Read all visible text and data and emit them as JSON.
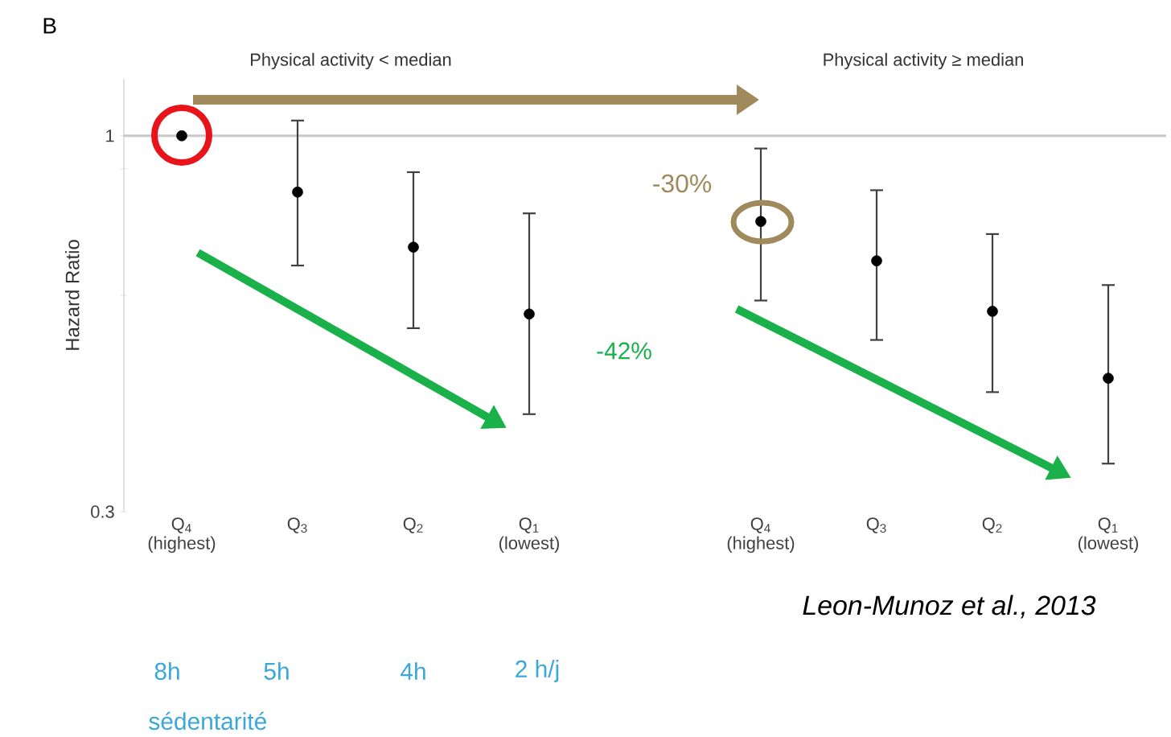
{
  "chart_data": {
    "type": "scatter",
    "ylabel": "Hazard Ratio",
    "categories": [
      "Q$_{4}$ (highest)",
      "Q$_{3}$",
      "Q$_{2}$",
      "Q$_{1}$ (lowest)",
      null,
      "Q$_{4}$ (highest)",
      "Q$_{3}$",
      "Q$_{2}$",
      "Q$_{1}$ (lowest)"
    ],
    "values": [
      1.0,
      0.835,
      0.7,
      0.565,
      null,
      0.76,
      0.67,
      0.57,
      0.46
    ],
    "errors": [
      null,
      [
        0.66,
        1.05
      ],
      [
        0.54,
        0.89
      ],
      [
        0.41,
        0.78
      ],
      null,
      [
        0.59,
        0.96
      ],
      [
        0.52,
        0.84
      ],
      [
        0.44,
        0.73
      ],
      [
        0.35,
        0.62
      ]
    ],
    "color": "#000000",
    "marker": "circle",
    "log": true,
    "ylim": [
      0.3,
      1.2
    ],
    "yticks": [
      0.3,
      {
        "value": 0.6,
        "label": null
      },
      {
        "value": 0.9,
        "label": null
      },
      1
    ],
    "ref_lines": [
      {
        "axis": "y",
        "value": 1,
        "color": "#c8c8c8"
      }
    ],
    "annotations": [
      "B",
      "Physical activity < median",
      "Physical activity ≥ median",
      "-30%",
      "-42%",
      "Leon-Munoz et al., 2013",
      "8h",
      "5h",
      "4h",
      "2 h/j",
      "sédentarité"
    ]
  }
}
